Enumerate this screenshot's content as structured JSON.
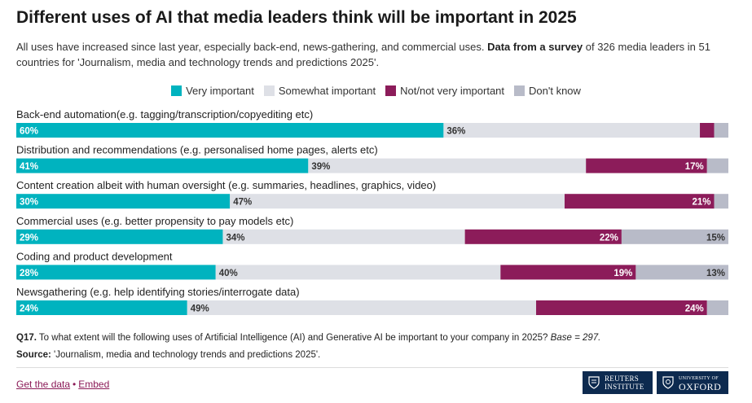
{
  "title": "Different uses of AI that media leaders think will be important in 2025",
  "subtitle": {
    "part1": "All uses have increased since last year, especially back-end, news-gathering, and commercial uses. ",
    "bold": "Data from a survey",
    "part2": " of 326 media leaders in 51 countries for 'Journalism, media and technology trends and predictions 2025'."
  },
  "legend": [
    {
      "label": "Very important",
      "color": "#00b3bf"
    },
    {
      "label": "Somewhat important",
      "color": "#dee0e6"
    },
    {
      "label": "Not/not very important",
      "color": "#8c1c5a"
    },
    {
      "label": "Don't know",
      "color": "#b8bbc8"
    }
  ],
  "chart_data": {
    "type": "bar",
    "orientation": "horizontal",
    "stacked": true,
    "unit": "%",
    "categories": [
      "Back-end automation(e.g. tagging/transcription/copyediting etc)",
      "Distribution and recommendations (e.g. personalised home pages, alerts etc)",
      "Content creation albeit with human oversight (e.g. summaries, headlines, graphics, video)",
      "Commercial uses (e.g. better propensity to pay models etc)",
      "Coding and product development",
      "Newsgathering (e.g. help identifying stories/interrogate data)"
    ],
    "series": [
      {
        "name": "Very important",
        "color": "#00b3bf",
        "values": [
          60,
          41,
          30,
          29,
          28,
          24
        ],
        "labels": [
          "60%",
          "41%",
          "30%",
          "29%",
          "28%",
          "24%"
        ]
      },
      {
        "name": "Somewhat important",
        "color": "#dee0e6",
        "values": [
          36,
          39,
          47,
          34,
          40,
          49
        ],
        "labels": [
          "36%",
          "39%",
          "47%",
          "34%",
          "40%",
          "49%"
        ]
      },
      {
        "name": "Not/not very important",
        "color": "#8c1c5a",
        "values": [
          2,
          17,
          21,
          22,
          19,
          24
        ],
        "labels": [
          "",
          "17%",
          "21%",
          "22%",
          "19%",
          "24%"
        ]
      },
      {
        "name": "Don't know",
        "color": "#b8bbc8",
        "values": [
          2,
          3,
          2,
          15,
          13,
          3
        ],
        "labels": [
          "",
          "",
          "",
          "15%",
          "13%",
          ""
        ]
      }
    ],
    "xlim": [
      0,
      100
    ]
  },
  "footer": {
    "question_label": "Q17.",
    "question_text": " To what extent will the following uses of Artificial Intelligence (AI) and Generative AI be important to your company in 2025? ",
    "question_base": "Base = 297.",
    "source_label": "Source:",
    "source_text": " 'Journalism, media and technology trends and predictions 2025'.",
    "link_data": "Get the data",
    "separator": "•",
    "link_embed": "Embed"
  },
  "logos": {
    "reuters": {
      "line1": "REUTERS",
      "line2": "INSTITUTE"
    },
    "oxford": {
      "line1": "UNIVERSITY OF",
      "line2": "OXFORD"
    }
  }
}
